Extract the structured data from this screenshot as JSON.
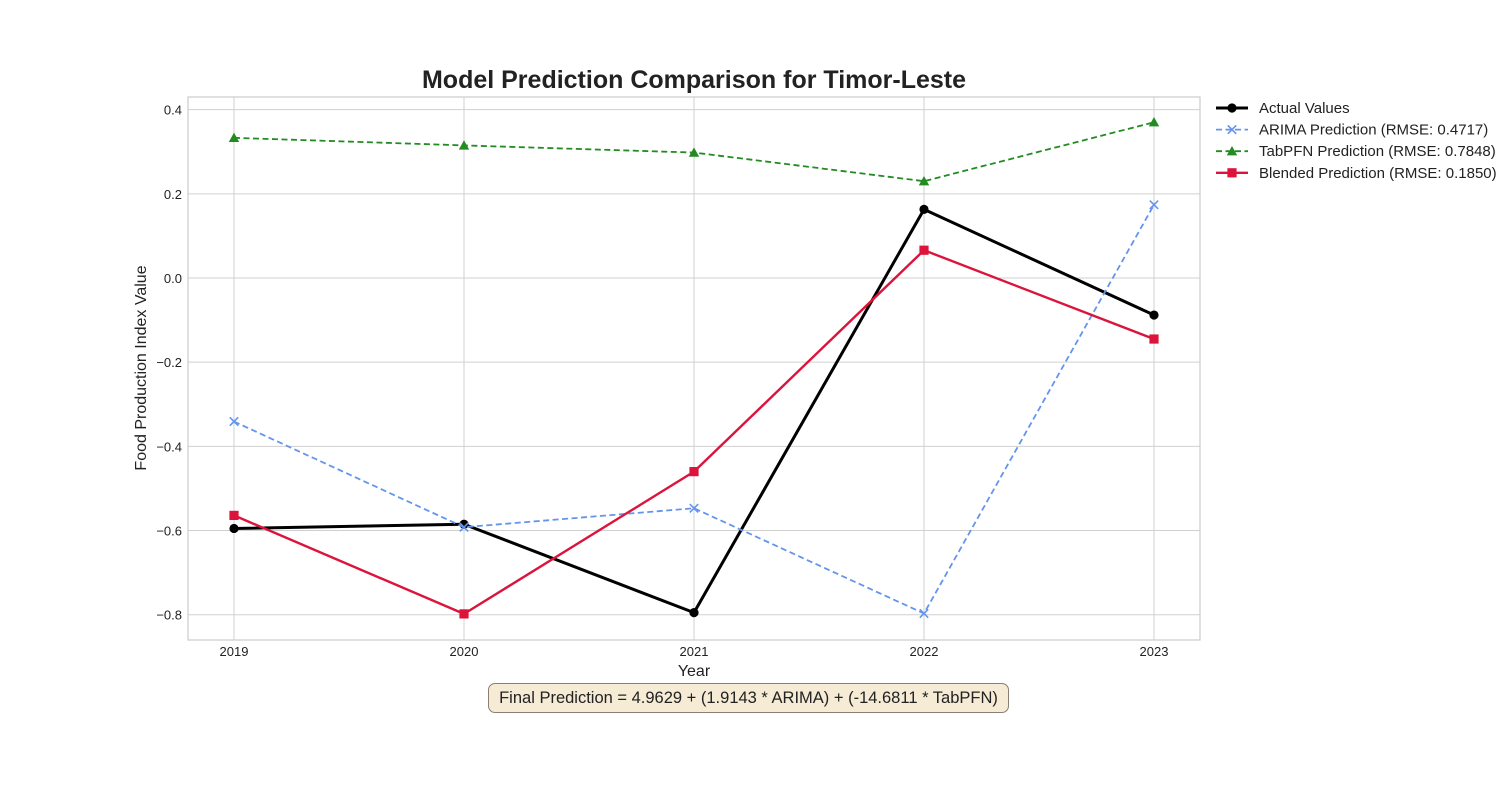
{
  "chart_data": {
    "type": "line",
    "title": "Model Prediction Comparison for Timor-Leste",
    "xlabel": "Year",
    "ylabel": "Food Production Index Value",
    "x": [
      "2019",
      "2020",
      "2021",
      "2022",
      "2023"
    ],
    "yticks": [
      0.4,
      0.2,
      0.0,
      -0.2,
      -0.4,
      -0.6,
      -0.8
    ],
    "ytick_labels": [
      "0.4",
      "0.2",
      "0.0",
      "−0.2",
      "−0.4",
      "−0.6",
      "−0.8"
    ],
    "ylim": [
      -0.86,
      0.43
    ],
    "grid": true,
    "legend_position": "outside top-right",
    "series": [
      {
        "name": "Actual Values",
        "values": [
          -0.595,
          -0.585,
          -0.795,
          0.163,
          -0.088
        ],
        "color": "#000000",
        "style": "solid",
        "marker": "circle"
      },
      {
        "name": "ARIMA Prediction (RMSE: 0.4717)",
        "values": [
          -0.341,
          -0.592,
          -0.547,
          -0.797,
          0.174
        ],
        "color": "#6495ed",
        "style": "dashed",
        "marker": "x"
      },
      {
        "name": "TabPFN Prediction (RMSE: 0.7848)",
        "values": [
          0.333,
          0.315,
          0.298,
          0.23,
          0.37
        ],
        "color": "#228b22",
        "style": "dashed",
        "marker": "triangle"
      },
      {
        "name": "Blended Prediction (RMSE: 0.1850)",
        "values": [
          -0.564,
          -0.798,
          -0.46,
          0.066,
          -0.145
        ],
        "color": "#dc143c",
        "style": "solid",
        "marker": "square"
      }
    ],
    "annotation": "Final Prediction = 4.9629 + (1.9143 * ARIMA) + (-14.6811 * TabPFN)"
  }
}
